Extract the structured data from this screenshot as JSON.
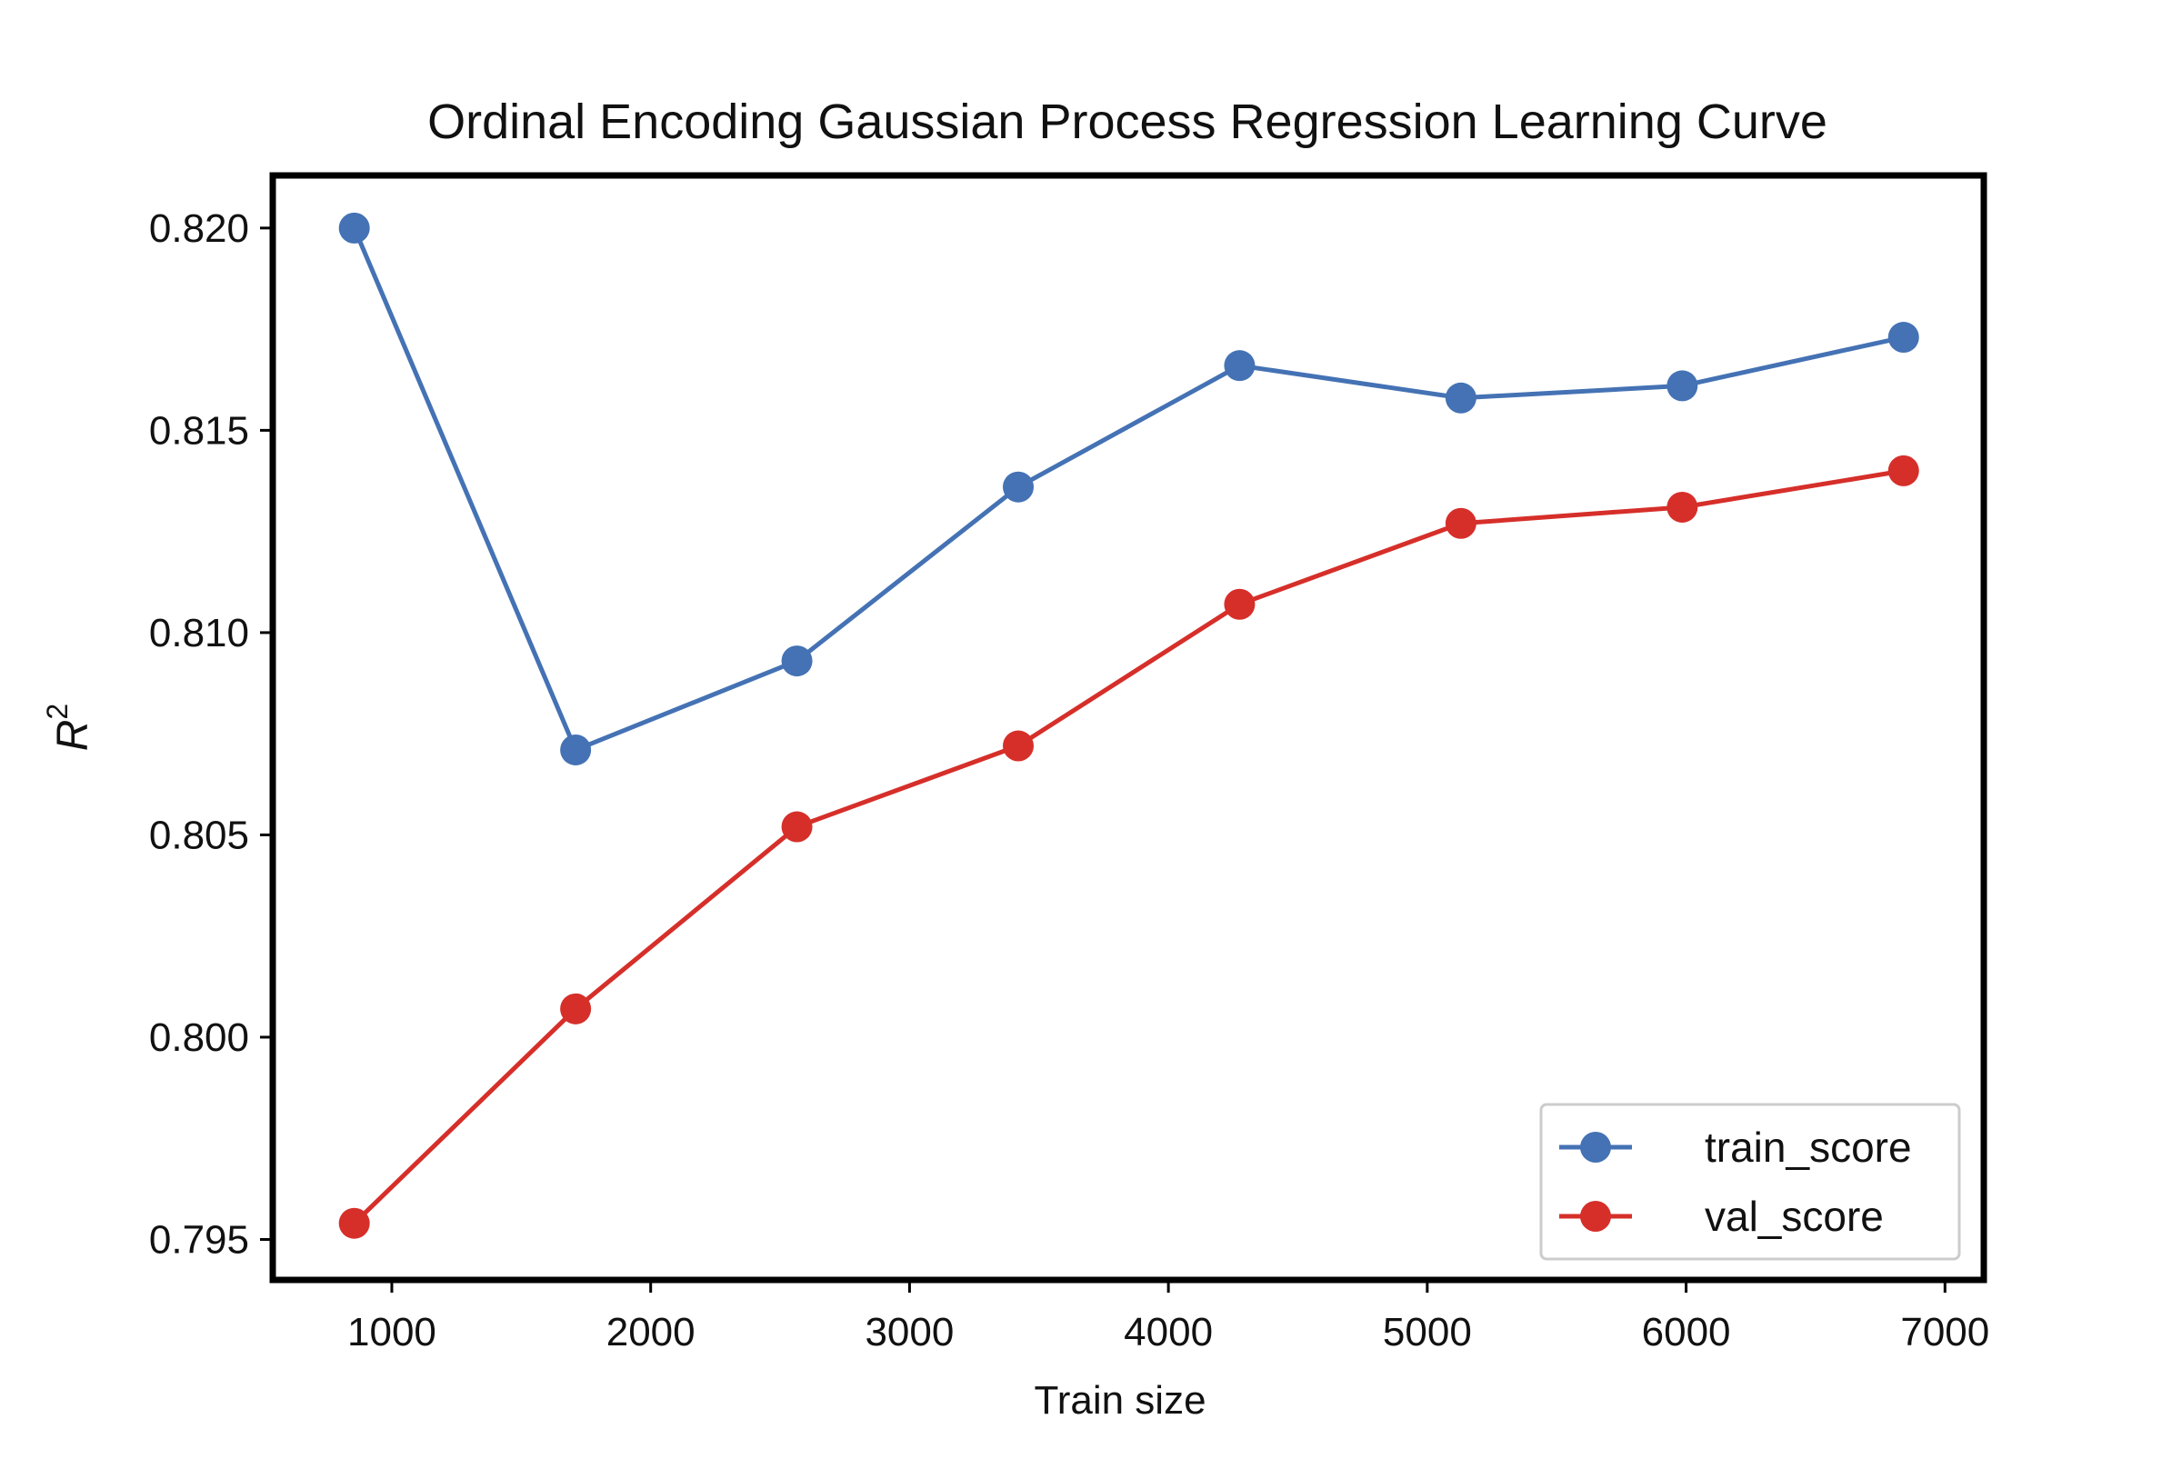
{
  "chart_data": {
    "type": "line",
    "title": "Ordinal Encoding Gaussian Process Regression Learning Curve",
    "xlabel": "Train size",
    "ylabel_base": "R",
    "ylabel_sup": "2",
    "xlim": [
      540,
      7150
    ],
    "ylim": [
      0.794,
      0.8213
    ],
    "xticks": [
      1000,
      2000,
      3000,
      4000,
      5000,
      6000,
      7000
    ],
    "xtick_labels": [
      "1000",
      "2000",
      "3000",
      "4000",
      "5000",
      "6000",
      "7000"
    ],
    "yticks": [
      0.795,
      0.8,
      0.805,
      0.81,
      0.815,
      0.82
    ],
    "ytick_labels": [
      "0.795",
      "0.800",
      "0.805",
      "0.810",
      "0.815",
      "0.820"
    ],
    "grid": false,
    "legend_position": "lower-right",
    "x": [
      855,
      1710,
      2565,
      3420,
      4275,
      5130,
      5985,
      6840
    ],
    "series": [
      {
        "name": "train_score",
        "color": "#4472b4",
        "values": [
          0.82,
          0.8071,
          0.8093,
          0.8136,
          0.8166,
          0.8158,
          0.8161,
          0.8173
        ]
      },
      {
        "name": "val_score",
        "color": "#d62f2a",
        "values": [
          0.7954,
          0.8007,
          0.8052,
          0.8072,
          0.8107,
          0.8127,
          0.8131,
          0.814
        ]
      }
    ]
  }
}
